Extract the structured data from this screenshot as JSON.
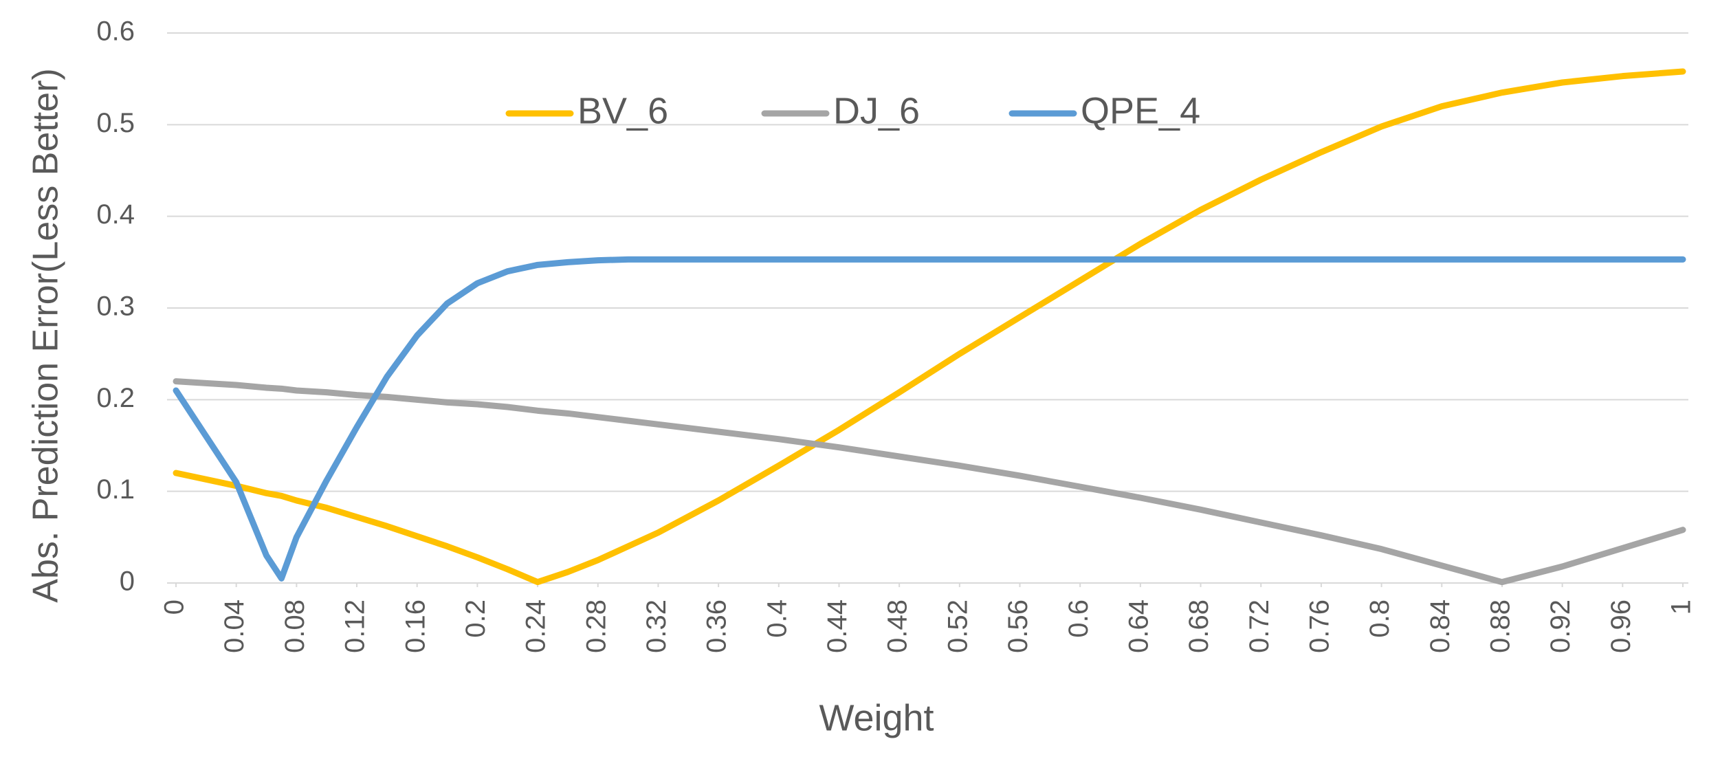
{
  "chart_data": {
    "type": "line",
    "xlabel": "Weight",
    "ylabel": "Abs. Prediction Error(Less Better)",
    "x": [
      0,
      0.02,
      0.04,
      0.06,
      0.07,
      0.08,
      0.1,
      0.12,
      0.14,
      0.16,
      0.18,
      0.2,
      0.22,
      0.24,
      0.26,
      0.28,
      0.3,
      0.32,
      0.36,
      0.4,
      0.44,
      0.48,
      0.52,
      0.56,
      0.6,
      0.64,
      0.68,
      0.72,
      0.76,
      0.8,
      0.84,
      0.88,
      0.92,
      0.96,
      1
    ],
    "series": [
      {
        "name": "BV_6",
        "color": "#ffc000",
        "values": [
          0.12,
          0.113,
          0.106,
          0.098,
          0.095,
          0.09,
          0.082,
          0.072,
          0.062,
          0.051,
          0.04,
          0.028,
          0.015,
          0.001,
          0.012,
          0.025,
          0.04,
          0.055,
          0.09,
          0.128,
          0.167,
          0.208,
          0.25,
          0.29,
          0.33,
          0.37,
          0.407,
          0.44,
          0.47,
          0.498,
          0.52,
          0.535,
          0.546,
          0.553,
          0.558
        ]
      },
      {
        "name": "DJ_6",
        "color": "#a5a5a5",
        "values": [
          0.22,
          0.218,
          0.216,
          0.213,
          0.212,
          0.21,
          0.208,
          0.205,
          0.203,
          0.2,
          0.197,
          0.195,
          0.192,
          0.188,
          0.185,
          0.181,
          0.177,
          0.173,
          0.165,
          0.157,
          0.148,
          0.138,
          0.128,
          0.117,
          0.105,
          0.093,
          0.08,
          0.066,
          0.052,
          0.037,
          0.019,
          0.001,
          0.018,
          0.038,
          0.058
        ]
      },
      {
        "name": "QPE_4",
        "color": "#5b9bd5",
        "values": [
          0.21,
          0.16,
          0.11,
          0.03,
          0.005,
          0.05,
          0.112,
          0.17,
          0.225,
          0.27,
          0.305,
          0.327,
          0.34,
          0.347,
          0.35,
          0.352,
          0.353,
          0.353,
          0.353,
          0.353,
          0.353,
          0.353,
          0.353,
          0.353,
          0.353,
          0.353,
          0.353,
          0.353,
          0.353,
          0.353,
          0.353,
          0.353,
          0.353,
          0.353,
          0.353
        ]
      }
    ],
    "xlim": [
      0,
      1
    ],
    "xticks": [
      0,
      0.04,
      0.08,
      0.12,
      0.16,
      0.2,
      0.24,
      0.28,
      0.32,
      0.36,
      0.4,
      0.44,
      0.48,
      0.52,
      0.56,
      0.6,
      0.64,
      0.68,
      0.72,
      0.76,
      0.8,
      0.84,
      0.88,
      0.92,
      0.96,
      1
    ],
    "ylim": [
      0,
      0.6
    ],
    "yticks": [
      0,
      0.1,
      0.2,
      0.3,
      0.4,
      0.5,
      0.6
    ],
    "grid": true,
    "legend": "top"
  }
}
